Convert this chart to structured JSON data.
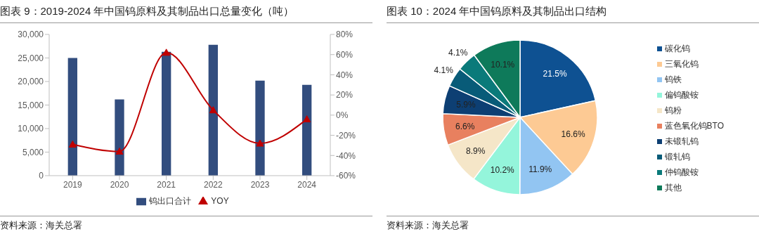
{
  "chart_data": [
    {
      "type": "bar",
      "title": "图表 9：2019-2024 年中国钨原料及其制品出口总量变化（吨）",
      "annotations": [
        "资料来源：海关总署"
      ],
      "categories": [
        "2019",
        "2020",
        "2021",
        "2022",
        "2023",
        "2024"
      ],
      "series": [
        {
          "name": "钨出口合计",
          "color": "#324d7e",
          "values": [
            25000,
            16200,
            26300,
            27800,
            20200,
            19300
          ]
        },
        {
          "name": "YOY",
          "type": "line",
          "axis": "y2",
          "color": "#c00000",
          "values": [
            -29,
            -36,
            62,
            5,
            -28,
            -4
          ]
        }
      ],
      "ylim": [
        0,
        30000
      ],
      "yticks": [
        {
          "value": 0,
          "label": "0"
        },
        {
          "value": 5000,
          "label": "5,000"
        },
        {
          "value": 10000,
          "label": "10,000"
        },
        {
          "value": 15000,
          "label": "15,000"
        },
        {
          "value": 20000,
          "label": "20,000"
        },
        {
          "value": 25000,
          "label": "25,000"
        },
        {
          "value": 30000,
          "label": "30,000"
        }
      ],
      "y2lim": [
        -60,
        80
      ],
      "y2ticks": [
        {
          "value": -60,
          "label": "-60%"
        },
        {
          "value": -40,
          "label": "-40%"
        },
        {
          "value": -20,
          "label": "-20%"
        },
        {
          "value": 0,
          "label": "0%"
        },
        {
          "value": 20,
          "label": "20%"
        },
        {
          "value": 40,
          "label": "40%"
        },
        {
          "value": 60,
          "label": "60%"
        },
        {
          "value": 80,
          "label": "80%"
        }
      ],
      "legend": "bottom",
      "marker": "triangle"
    },
    {
      "type": "pie",
      "title": "图表 10：2024 年中国钨原料及其制品出口结构",
      "annotations": [
        "资料来源：海关总署"
      ],
      "categories": [
        "碳化钨",
        "三氧化钨",
        "钨铁",
        "偏钨酸铵",
        "钨粉",
        "蓝色氧化钨BTO",
        "未锻轧钨",
        "锻轧钨",
        "仲钨酸铵",
        "其他"
      ],
      "values": [
        21.5,
        16.6,
        11.9,
        10.2,
        8.9,
        6.6,
        5.9,
        4.1,
        4.1,
        10.1
      ],
      "colors": [
        "#0e5192",
        "#fdca94",
        "#92c5f2",
        "#94f5db",
        "#f5e6c8",
        "#e8805f",
        "#0d3f73",
        "#085b78",
        "#0a7a7a",
        "#0e7a5a"
      ],
      "value_labels": [
        "21.5%",
        "16.6%",
        "11.9%",
        "10.2%",
        "8.9%",
        "6.6%",
        "5.9%",
        "4.1%",
        "4.1%",
        "10.1%"
      ],
      "legend": "right"
    }
  ]
}
